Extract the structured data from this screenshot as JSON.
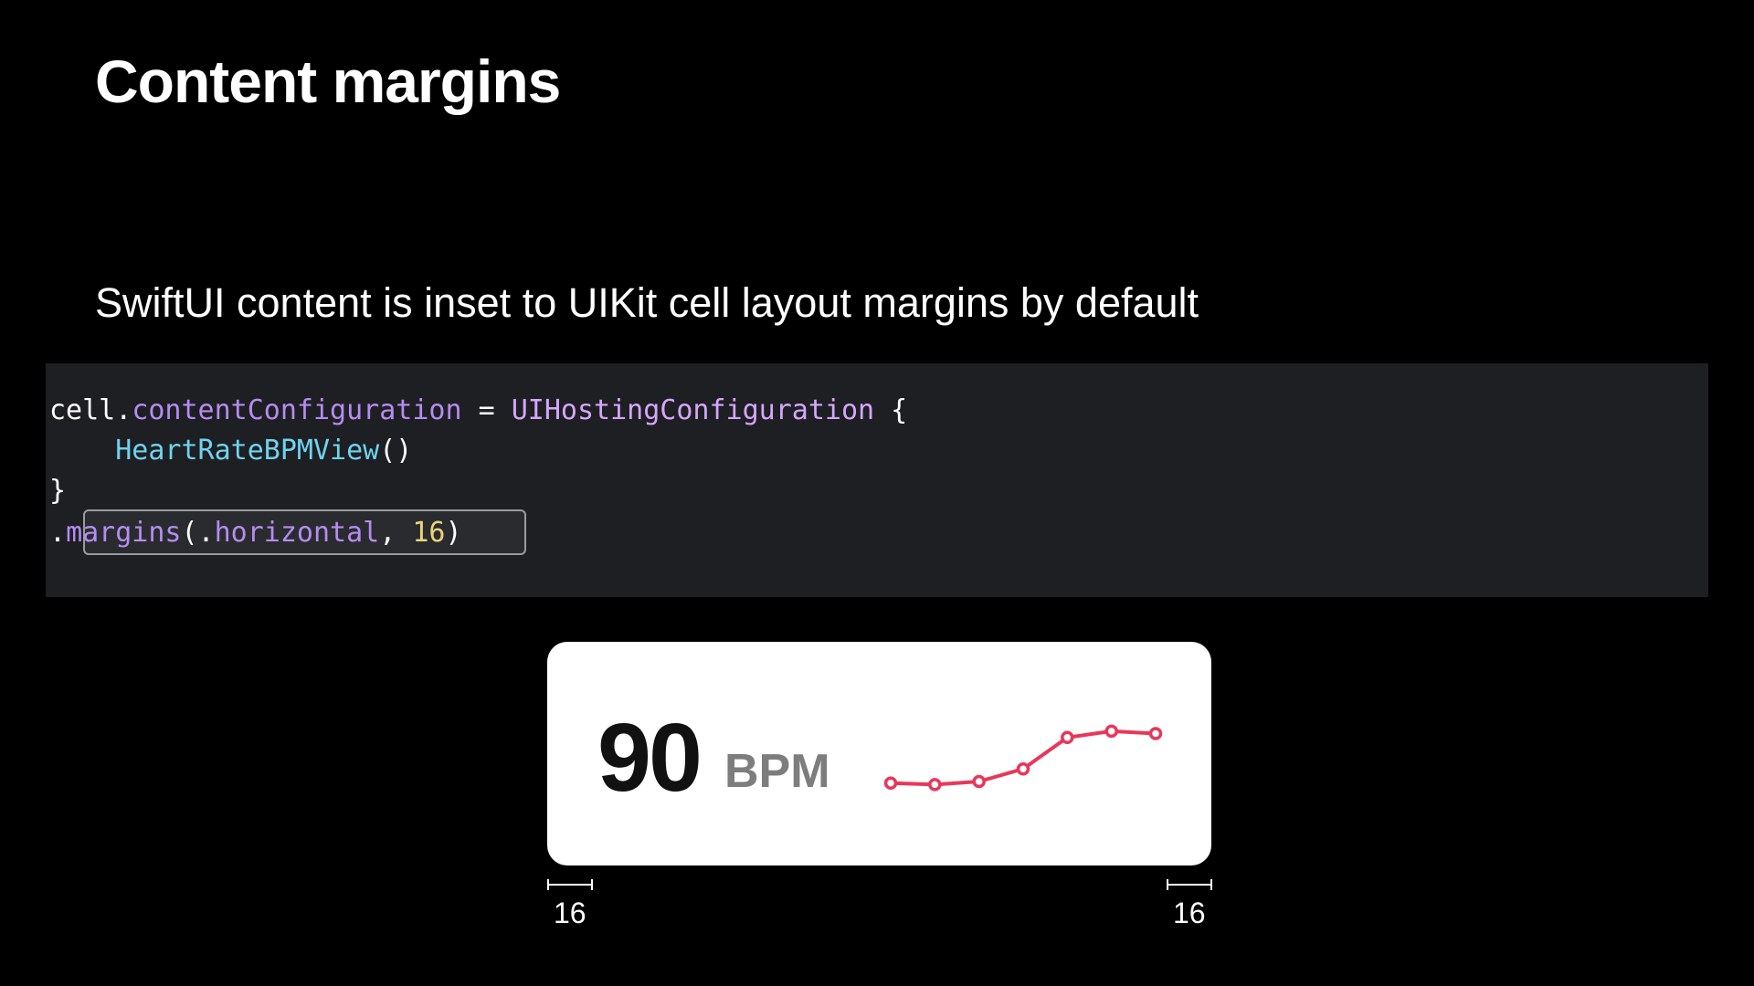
{
  "slide": {
    "title": "Content margins",
    "subtitle": "SwiftUI content is inset to UIKit cell layout margins by default"
  },
  "code": {
    "line1": {
      "t1": "cell.",
      "t2": "contentConfiguration",
      "t3": " = ",
      "t4": "UIHostingConfiguration",
      "t5": " {"
    },
    "line2": {
      "indent": "    ",
      "t1": "HeartRateBPMView",
      "t2": "()"
    },
    "line3": {
      "t1": "}"
    },
    "line4": {
      "t1": ".",
      "t2": "margins",
      "t3": "(.",
      "t4": "horizontal",
      "t5": ", ",
      "t6": "16",
      "t7": ")"
    }
  },
  "card": {
    "value": "90",
    "unit": "BPM",
    "trend_values": [
      0.12,
      0.1,
      0.14,
      0.3,
      0.7,
      0.78,
      0.75
    ],
    "trend_color": "#e8375a"
  },
  "measurements": {
    "left": "16",
    "right": "16"
  },
  "colors": {
    "background": "#000000",
    "code_background": "#1e1f22",
    "card_background": "#ffffff"
  }
}
